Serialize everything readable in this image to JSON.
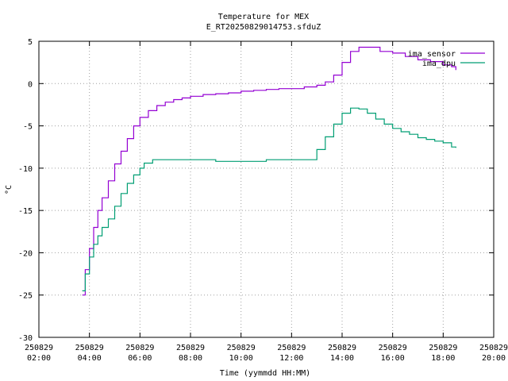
{
  "chart_data": {
    "type": "line",
    "title": "Temperature for MEX",
    "subtitle": "E_RT20250829014753.sfduZ",
    "xlabel": "Time (yymmdd HH:MM)",
    "ylabel": "°C",
    "ylim": [
      -30,
      5
    ],
    "yticks": [
      -30,
      -25,
      -20,
      -15,
      -10,
      -5,
      0,
      5
    ],
    "xlim": [
      "2025-08-29 02:00",
      "2025-08-29 20:00"
    ],
    "xticks": [
      {
        "t": "2025-08-29 02:00",
        "date": "250829",
        "time": "02:00"
      },
      {
        "t": "2025-08-29 04:00",
        "date": "250829",
        "time": "04:00"
      },
      {
        "t": "2025-08-29 06:00",
        "date": "250829",
        "time": "06:00"
      },
      {
        "t": "2025-08-29 08:00",
        "date": "250829",
        "time": "08:00"
      },
      {
        "t": "2025-08-29 10:00",
        "date": "250829",
        "time": "10:00"
      },
      {
        "t": "2025-08-29 12:00",
        "date": "250829",
        "time": "12:00"
      },
      {
        "t": "2025-08-29 14:00",
        "date": "250829",
        "time": "14:00"
      },
      {
        "t": "2025-08-29 16:00",
        "date": "250829",
        "time": "16:00"
      },
      {
        "t": "2025-08-29 18:00",
        "date": "250829",
        "time": "18:00"
      },
      {
        "t": "2025-08-29 20:00",
        "date": "250829",
        "time": "20:00"
      }
    ],
    "grid": true,
    "legend": "top-right",
    "series": [
      {
        "name": "ima_sensor",
        "color": "#9400d3",
        "x": [
          "2025-08-29 03:43",
          "2025-08-29 03:50",
          "2025-08-29 04:00",
          "2025-08-29 04:10",
          "2025-08-29 04:20",
          "2025-08-29 04:30",
          "2025-08-29 04:45",
          "2025-08-29 05:00",
          "2025-08-29 05:15",
          "2025-08-29 05:30",
          "2025-08-29 05:45",
          "2025-08-29 06:00",
          "2025-08-29 06:20",
          "2025-08-29 06:40",
          "2025-08-29 07:00",
          "2025-08-29 07:20",
          "2025-08-29 07:40",
          "2025-08-29 08:00",
          "2025-08-29 08:30",
          "2025-08-29 09:00",
          "2025-08-29 09:30",
          "2025-08-29 10:00",
          "2025-08-29 10:30",
          "2025-08-29 11:00",
          "2025-08-29 11:30",
          "2025-08-29 12:00",
          "2025-08-29 12:30",
          "2025-08-29 13:00",
          "2025-08-29 13:20",
          "2025-08-29 13:40",
          "2025-08-29 14:00",
          "2025-08-29 14:20",
          "2025-08-29 14:40",
          "2025-08-29 15:00",
          "2025-08-29 15:30",
          "2025-08-29 16:00",
          "2025-08-29 16:30",
          "2025-08-29 17:00",
          "2025-08-29 17:30",
          "2025-08-29 18:00",
          "2025-08-29 18:20",
          "2025-08-29 18:30"
        ],
        "y": [
          -25.0,
          -22.0,
          -19.5,
          -17.0,
          -15.0,
          -13.5,
          -11.5,
          -9.5,
          -8.0,
          -6.5,
          -5.0,
          -4.0,
          -3.2,
          -2.6,
          -2.2,
          -1.9,
          -1.7,
          -1.5,
          -1.3,
          -1.2,
          -1.1,
          -0.9,
          -0.8,
          -0.7,
          -0.6,
          -0.6,
          -0.4,
          -0.2,
          0.2,
          1.0,
          2.5,
          3.8,
          4.3,
          4.3,
          3.8,
          3.6,
          3.2,
          2.8,
          2.6,
          2.2,
          2.0,
          1.6
        ]
      },
      {
        "name": "ima_dpu",
        "color": "#009e73",
        "x": [
          "2025-08-29 03:43",
          "2025-08-29 03:50",
          "2025-08-29 04:00",
          "2025-08-29 04:10",
          "2025-08-29 04:20",
          "2025-08-29 04:30",
          "2025-08-29 04:45",
          "2025-08-29 05:00",
          "2025-08-29 05:15",
          "2025-08-29 05:30",
          "2025-08-29 05:45",
          "2025-08-29 06:00",
          "2025-08-29 06:10",
          "2025-08-29 06:30",
          "2025-08-29 07:00",
          "2025-08-29 08:00",
          "2025-08-29 09:00",
          "2025-08-29 10:00",
          "2025-08-29 11:00",
          "2025-08-29 12:00",
          "2025-08-29 12:40",
          "2025-08-29 13:00",
          "2025-08-29 13:20",
          "2025-08-29 13:40",
          "2025-08-29 14:00",
          "2025-08-29 14:20",
          "2025-08-29 14:40",
          "2025-08-29 15:00",
          "2025-08-29 15:20",
          "2025-08-29 15:40",
          "2025-08-29 16:00",
          "2025-08-29 16:20",
          "2025-08-29 16:40",
          "2025-08-29 17:00",
          "2025-08-29 17:20",
          "2025-08-29 17:40",
          "2025-08-29 18:00",
          "2025-08-29 18:20",
          "2025-08-29 18:30"
        ],
        "y": [
          -24.5,
          -22.5,
          -20.5,
          -19.0,
          -18.0,
          -17.0,
          -16.0,
          -14.5,
          -13.0,
          -11.8,
          -10.8,
          -10.0,
          -9.4,
          -9.0,
          -9.0,
          -9.0,
          -9.2,
          -9.2,
          -9.0,
          -9.0,
          -9.0,
          -7.8,
          -6.3,
          -4.8,
          -3.5,
          -2.9,
          -3.0,
          -3.5,
          -4.2,
          -4.8,
          -5.3,
          -5.7,
          -6.0,
          -6.4,
          -6.6,
          -6.8,
          -7.0,
          -7.5,
          -7.6
        ]
      }
    ]
  }
}
